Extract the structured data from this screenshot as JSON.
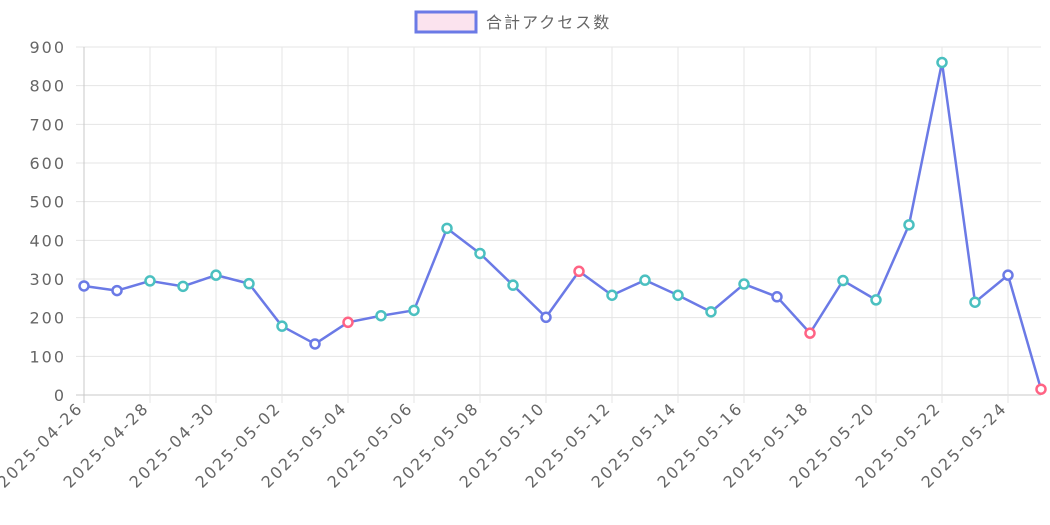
{
  "chart_data": {
    "type": "line",
    "legend": {
      "label": "合計アクセス数",
      "position": "top",
      "box_fill": "#fbe3ee",
      "box_stroke": "#6b7ae6"
    },
    "x": [
      "2025-04-26",
      "2025-04-27",
      "2025-04-28",
      "2025-04-29",
      "2025-04-30",
      "2025-05-01",
      "2025-05-02",
      "2025-05-03",
      "2025-05-04",
      "2025-05-05",
      "2025-05-06",
      "2025-05-07",
      "2025-05-08",
      "2025-05-09",
      "2025-05-10",
      "2025-05-11",
      "2025-05-12",
      "2025-05-13",
      "2025-05-14",
      "2025-05-15",
      "2025-05-16",
      "2025-05-17",
      "2025-05-18",
      "2025-05-19",
      "2025-05-20",
      "2025-05-21",
      "2025-05-22",
      "2025-05-23",
      "2025-05-24",
      "2025-05-25"
    ],
    "x_tick_labels": [
      "2025-04-26",
      "2025-04-28",
      "2025-04-30",
      "2025-05-02",
      "2025-05-04",
      "2025-05-06",
      "2025-05-08",
      "2025-05-10",
      "2025-05-12",
      "2025-05-14",
      "2025-05-16",
      "2025-05-18",
      "2025-05-20",
      "2025-05-22",
      "2025-05-24"
    ],
    "series": [
      {
        "name": "合計アクセス数",
        "values": [
          282,
          270,
          295,
          281,
          310,
          288,
          178,
          132,
          188,
          205,
          219,
          431,
          366,
          284,
          201,
          320,
          258,
          297,
          258,
          215,
          287,
          254,
          160,
          296,
          246,
          440,
          860,
          240,
          310,
          15
        ],
        "point_colors": [
          "#6b7ae6",
          "#6b7ae6",
          "#4bc0c0",
          "#4bc0c0",
          "#4bc0c0",
          "#4bc0c0",
          "#4bc0c0",
          "#6b7ae6",
          "#ff6384",
          "#4bc0c0",
          "#4bc0c0",
          "#4bc0c0",
          "#4bc0c0",
          "#4bc0c0",
          "#6b7ae6",
          "#ff6384",
          "#4bc0c0",
          "#4bc0c0",
          "#4bc0c0",
          "#4bc0c0",
          "#4bc0c0",
          "#6b7ae6",
          "#ff6384",
          "#4bc0c0",
          "#4bc0c0",
          "#4bc0c0",
          "#4bc0c0",
          "#4bc0c0",
          "#6b7ae6",
          "#ff6384"
        ],
        "color": "#6b7ae6"
      }
    ],
    "y_ticks": [
      "0",
      "100",
      "200",
      "300",
      "400",
      "500",
      "600",
      "700",
      "800",
      "900"
    ],
    "ylim": [
      0,
      900
    ],
    "grid": true
  }
}
